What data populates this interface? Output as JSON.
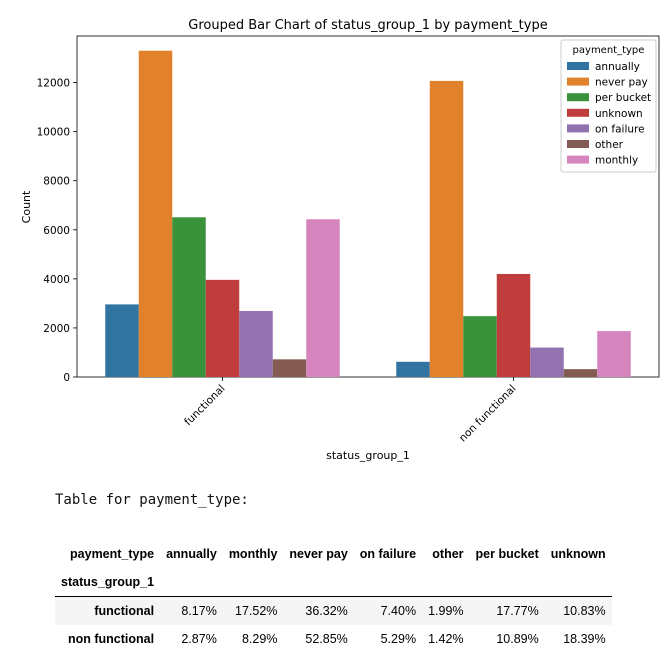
{
  "chart_data": {
    "type": "bar",
    "title": "Grouped Bar Chart of status_group_1 by payment_type",
    "xlabel": "status_group_1",
    "ylabel": "Count",
    "categories": [
      "functional",
      "non functional"
    ],
    "ylim": [
      0,
      14000
    ],
    "yticks": [
      0,
      2000,
      4000,
      6000,
      8000,
      10000,
      12000
    ],
    "legend_title": "payment_type",
    "legend_position": "top-right",
    "grid": false,
    "series": [
      {
        "name": "annually",
        "color": "#3274a1",
        "values": [
          2960,
          620
        ]
      },
      {
        "name": "never pay",
        "color": "#e1812c",
        "values": [
          13300,
          12070
        ]
      },
      {
        "name": "per bucket",
        "color": "#3a923a",
        "values": [
          6510,
          2480
        ]
      },
      {
        "name": "unknown",
        "color": "#c03d3e",
        "values": [
          3960,
          4200
        ]
      },
      {
        "name": "on failure",
        "color": "#9372b2",
        "values": [
          2690,
          1200
        ]
      },
      {
        "name": "other",
        "color": "#845b53",
        "values": [
          720,
          320
        ]
      },
      {
        "name": "monthly",
        "color": "#d684bd",
        "values": [
          6430,
          1870
        ]
      }
    ]
  },
  "table": {
    "caption": "Table for payment_type:",
    "columns_name": "payment_type",
    "index_name": "status_group_1",
    "columns": [
      "annually",
      "monthly",
      "never pay",
      "on failure",
      "other",
      "per bucket",
      "unknown"
    ],
    "rows": [
      {
        "label": "functional",
        "cells": [
          "8.17%",
          "17.52%",
          "36.32%",
          "7.40%",
          "1.99%",
          "17.77%",
          "10.83%"
        ]
      },
      {
        "label": "non functional",
        "cells": [
          "2.87%",
          "8.29%",
          "52.85%",
          "5.29%",
          "1.42%",
          "10.89%",
          "18.39%"
        ]
      }
    ]
  }
}
